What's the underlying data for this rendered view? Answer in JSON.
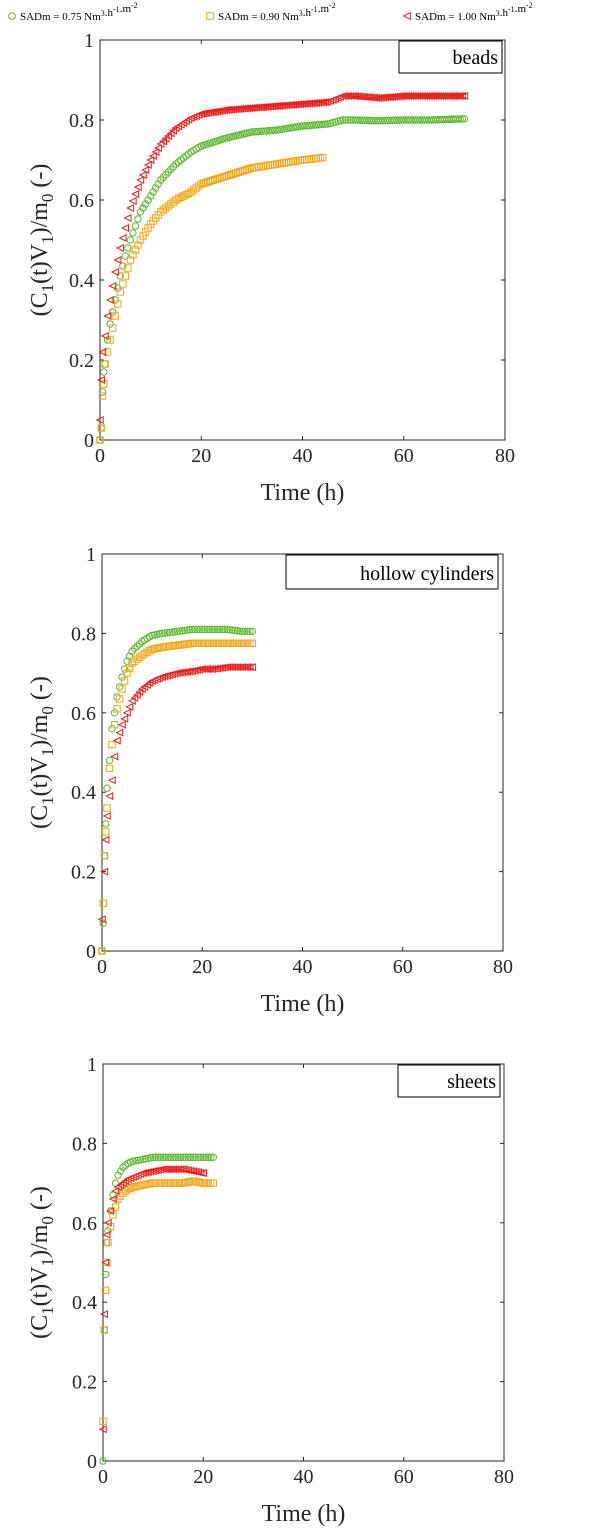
{
  "legend": {
    "entries": [
      {
        "series_key": "s075",
        "prefix": "SADm = 0.75 Nm",
        "sup1": "3",
        "mid": ".h",
        "sup2": "-1",
        "mid2": ".m",
        "sup3": "-2",
        "marker": "circle",
        "color": "#5cb82e"
      },
      {
        "series_key": "s090",
        "prefix": "SADm = 0.90 Nm",
        "sup1": "3",
        "mid": ".h",
        "sup2": "-1",
        "mid2": ".m",
        "sup3": "-2",
        "marker": "square",
        "color": "#f0a818"
      },
      {
        "series_key": "s100",
        "prefix": "SADm = 1.00 Nm",
        "sup1": "3",
        "mid": ".h",
        "sup2": "-1",
        "mid2": ".m",
        "sup3": "-2",
        "marker": "triangle-left",
        "color": "#ee1c1c"
      }
    ]
  },
  "chart_data": [
    {
      "type": "scatter",
      "panel_label": "beads",
      "xlabel": "Time (h)",
      "ylabel_parts": [
        "(C",
        "1",
        "(t)V",
        "1",
        ")/m",
        "0",
        " (-)"
      ],
      "xlim": [
        0,
        80
      ],
      "ylim": [
        0,
        1
      ],
      "xticks": [
        "0",
        "20",
        "40",
        "60",
        "80"
      ],
      "yticks": [
        "0",
        "0.2",
        "0.4",
        "0.6",
        "0.8",
        "1"
      ],
      "series": [
        {
          "key": "s075",
          "color": "#5cb82e",
          "marker": "circle",
          "points": [
            [
              0,
              0
            ],
            [
              0.25,
              0.03
            ],
            [
              0.5,
              0.12
            ],
            [
              0.75,
              0.17
            ],
            [
              1,
              0.19
            ],
            [
              1.5,
              0.25
            ],
            [
              2,
              0.29
            ],
            [
              3,
              0.35
            ],
            [
              4,
              0.41
            ],
            [
              5,
              0.46
            ],
            [
              6,
              0.5
            ],
            [
              8,
              0.57
            ],
            [
              10,
              0.61
            ],
            [
              12,
              0.65
            ],
            [
              15,
              0.69
            ],
            [
              18,
              0.72
            ],
            [
              20,
              0.735
            ],
            [
              25,
              0.755
            ],
            [
              30,
              0.77
            ],
            [
              35,
              0.775
            ],
            [
              40,
              0.785
            ],
            [
              45,
              0.79
            ],
            [
              48,
              0.8
            ],
            [
              50,
              0.8
            ],
            [
              55,
              0.798
            ],
            [
              60,
              0.8
            ],
            [
              65,
              0.8
            ],
            [
              72,
              0.803
            ]
          ]
        },
        {
          "key": "s090",
          "color": "#f0a818",
          "marker": "square",
          "points": [
            [
              0,
              0
            ],
            [
              0.25,
              0.03
            ],
            [
              0.5,
              0.11
            ],
            [
              0.75,
              0.14
            ],
            [
              1,
              0.19
            ],
            [
              1.5,
              0.22
            ],
            [
              2,
              0.25
            ],
            [
              3,
              0.31
            ],
            [
              4,
              0.37
            ],
            [
              5,
              0.41
            ],
            [
              6,
              0.45
            ],
            [
              8,
              0.5
            ],
            [
              10,
              0.54
            ],
            [
              12,
              0.57
            ],
            [
              15,
              0.6
            ],
            [
              18,
              0.62
            ],
            [
              20,
              0.64
            ],
            [
              25,
              0.66
            ],
            [
              30,
              0.68
            ],
            [
              35,
              0.69
            ],
            [
              40,
              0.7
            ],
            [
              44,
              0.706
            ]
          ]
        },
        {
          "key": "s100",
          "color": "#ee1c1c",
          "marker": "triangle-left",
          "points": [
            [
              0,
              0.05
            ],
            [
              0.25,
              0.15
            ],
            [
              0.5,
              0.22
            ],
            [
              1,
              0.26
            ],
            [
              1.5,
              0.31
            ],
            [
              2,
              0.35
            ],
            [
              3,
              0.42
            ],
            [
              4,
              0.48
            ],
            [
              5,
              0.53
            ],
            [
              6,
              0.58
            ],
            [
              8,
              0.65
            ],
            [
              10,
              0.7
            ],
            [
              12,
              0.74
            ],
            [
              15,
              0.78
            ],
            [
              18,
              0.805
            ],
            [
              20,
              0.815
            ],
            [
              25,
              0.825
            ],
            [
              30,
              0.83
            ],
            [
              35,
              0.835
            ],
            [
              40,
              0.84
            ],
            [
              45,
              0.845
            ],
            [
              48,
              0.86
            ],
            [
              50,
              0.86
            ],
            [
              55,
              0.855
            ],
            [
              60,
              0.86
            ],
            [
              65,
              0.86
            ],
            [
              72,
              0.86
            ]
          ]
        }
      ]
    },
    {
      "type": "scatter",
      "panel_label": "hollow cylinders",
      "xlabel": "Time (h)",
      "ylabel_parts": [
        "(C",
        "1",
        "(t)V",
        "1",
        ")/m",
        "0",
        " (-)"
      ],
      "xlim": [
        0,
        80
      ],
      "ylim": [
        0,
        1
      ],
      "xticks": [
        "0",
        "20",
        "40",
        "60",
        "80"
      ],
      "yticks": [
        "0",
        "0.2",
        "0.4",
        "0.6",
        "0.8",
        "1"
      ],
      "series": [
        {
          "key": "s075",
          "color": "#5cb82e",
          "marker": "circle",
          "points": [
            [
              0,
              0
            ],
            [
              0.25,
              0.07
            ],
            [
              0.5,
              0.24
            ],
            [
              0.75,
              0.32
            ],
            [
              1,
              0.41
            ],
            [
              1.5,
              0.48
            ],
            [
              2,
              0.56
            ],
            [
              2.5,
              0.6
            ],
            [
              3,
              0.64
            ],
            [
              4,
              0.69
            ],
            [
              5,
              0.73
            ],
            [
              6,
              0.755
            ],
            [
              8,
              0.78
            ],
            [
              10,
              0.795
            ],
            [
              12,
              0.8
            ],
            [
              15,
              0.805
            ],
            [
              18,
              0.81
            ],
            [
              20,
              0.81
            ],
            [
              22,
              0.81
            ],
            [
              25,
              0.81
            ],
            [
              28,
              0.805
            ],
            [
              30,
              0.805
            ]
          ]
        },
        {
          "key": "s090",
          "color": "#f0a818",
          "marker": "square",
          "points": [
            [
              0,
              0
            ],
            [
              0.25,
              0.12
            ],
            [
              0.5,
              0.24
            ],
            [
              0.75,
              0.3
            ],
            [
              1,
              0.36
            ],
            [
              1.5,
              0.46
            ],
            [
              2,
              0.52
            ],
            [
              2.5,
              0.57
            ],
            [
              3,
              0.61
            ],
            [
              4,
              0.66
            ],
            [
              5,
              0.7
            ],
            [
              6,
              0.725
            ],
            [
              8,
              0.745
            ],
            [
              10,
              0.76
            ],
            [
              12,
              0.765
            ],
            [
              15,
              0.77
            ],
            [
              18,
              0.775
            ],
            [
              20,
              0.775
            ],
            [
              22,
              0.775
            ],
            [
              25,
              0.775
            ],
            [
              28,
              0.775
            ],
            [
              30,
              0.775
            ]
          ]
        },
        {
          "key": "s100",
          "color": "#ee1c1c",
          "marker": "triangle-left",
          "points": [
            [
              0,
              0.08
            ],
            [
              0.5,
              0.2
            ],
            [
              0.75,
              0.28
            ],
            [
              1,
              0.34
            ],
            [
              1.5,
              0.39
            ],
            [
              2,
              0.43
            ],
            [
              2.5,
              0.49
            ],
            [
              3,
              0.53
            ],
            [
              4,
              0.57
            ],
            [
              5,
              0.6
            ],
            [
              6,
              0.63
            ],
            [
              8,
              0.66
            ],
            [
              10,
              0.68
            ],
            [
              12,
              0.69
            ],
            [
              15,
              0.7
            ],
            [
              18,
              0.705
            ],
            [
              20,
              0.71
            ],
            [
              22,
              0.71
            ],
            [
              25,
              0.715
            ],
            [
              28,
              0.715
            ],
            [
              30,
              0.715
            ]
          ]
        }
      ]
    },
    {
      "type": "scatter",
      "panel_label": "sheets",
      "xlabel": "Time (h)",
      "ylabel_parts": [
        "(C",
        "1",
        "(t)V",
        "1",
        ")/m",
        "0",
        " (-)"
      ],
      "xlim": [
        0,
        80
      ],
      "ylim": [
        0,
        1
      ],
      "xticks": [
        "0",
        "20",
        "40",
        "60",
        "80"
      ],
      "yticks": [
        "0",
        "0.2",
        "0.4",
        "0.6",
        "0.8",
        "1"
      ],
      "series": [
        {
          "key": "s075",
          "color": "#5cb82e",
          "marker": "circle",
          "points": [
            [
              0,
              0
            ],
            [
              0.25,
              0.33
            ],
            [
              0.5,
              0.47
            ],
            [
              0.75,
              0.55
            ],
            [
              1,
              0.58
            ],
            [
              1.5,
              0.63
            ],
            [
              2,
              0.67
            ],
            [
              2.5,
              0.7
            ],
            [
              3,
              0.72
            ],
            [
              4,
              0.74
            ],
            [
              5,
              0.75
            ],
            [
              6,
              0.755
            ],
            [
              8,
              0.76
            ],
            [
              10,
              0.765
            ],
            [
              12,
              0.765
            ],
            [
              14,
              0.765
            ],
            [
              16,
              0.765
            ],
            [
              18,
              0.765
            ],
            [
              20,
              0.765
            ],
            [
              22,
              0.765
            ]
          ]
        },
        {
          "key": "s090",
          "color": "#f0a818",
          "marker": "square",
          "points": [
            [
              0,
              0.1
            ],
            [
              0.25,
              0.33
            ],
            [
              0.5,
              0.43
            ],
            [
              0.75,
              0.5
            ],
            [
              1,
              0.55
            ],
            [
              1.5,
              0.59
            ],
            [
              2,
              0.62
            ],
            [
              2.5,
              0.64
            ],
            [
              3,
              0.66
            ],
            [
              4,
              0.675
            ],
            [
              5,
              0.685
            ],
            [
              6,
              0.69
            ],
            [
              8,
              0.695
            ],
            [
              10,
              0.7
            ],
            [
              12,
              0.7
            ],
            [
              14,
              0.7
            ],
            [
              16,
              0.7
            ],
            [
              18,
              0.705
            ],
            [
              20,
              0.7
            ],
            [
              22,
              0.7
            ]
          ]
        },
        {
          "key": "s100",
          "color": "#ee1c1c",
          "marker": "triangle-left",
          "points": [
            [
              0,
              0.08
            ],
            [
              0.25,
              0.37
            ],
            [
              0.5,
              0.5
            ],
            [
              0.75,
              0.57
            ],
            [
              1,
              0.6
            ],
            [
              1.5,
              0.63
            ],
            [
              2,
              0.66
            ],
            [
              2.5,
              0.68
            ],
            [
              3,
              0.69
            ],
            [
              4,
              0.7
            ],
            [
              5,
              0.71
            ],
            [
              6,
              0.715
            ],
            [
              8,
              0.725
            ],
            [
              10,
              0.73
            ],
            [
              12,
              0.735
            ],
            [
              14,
              0.735
            ],
            [
              16,
              0.735
            ],
            [
              18,
              0.73
            ],
            [
              20,
              0.725
            ]
          ]
        }
      ]
    }
  ]
}
